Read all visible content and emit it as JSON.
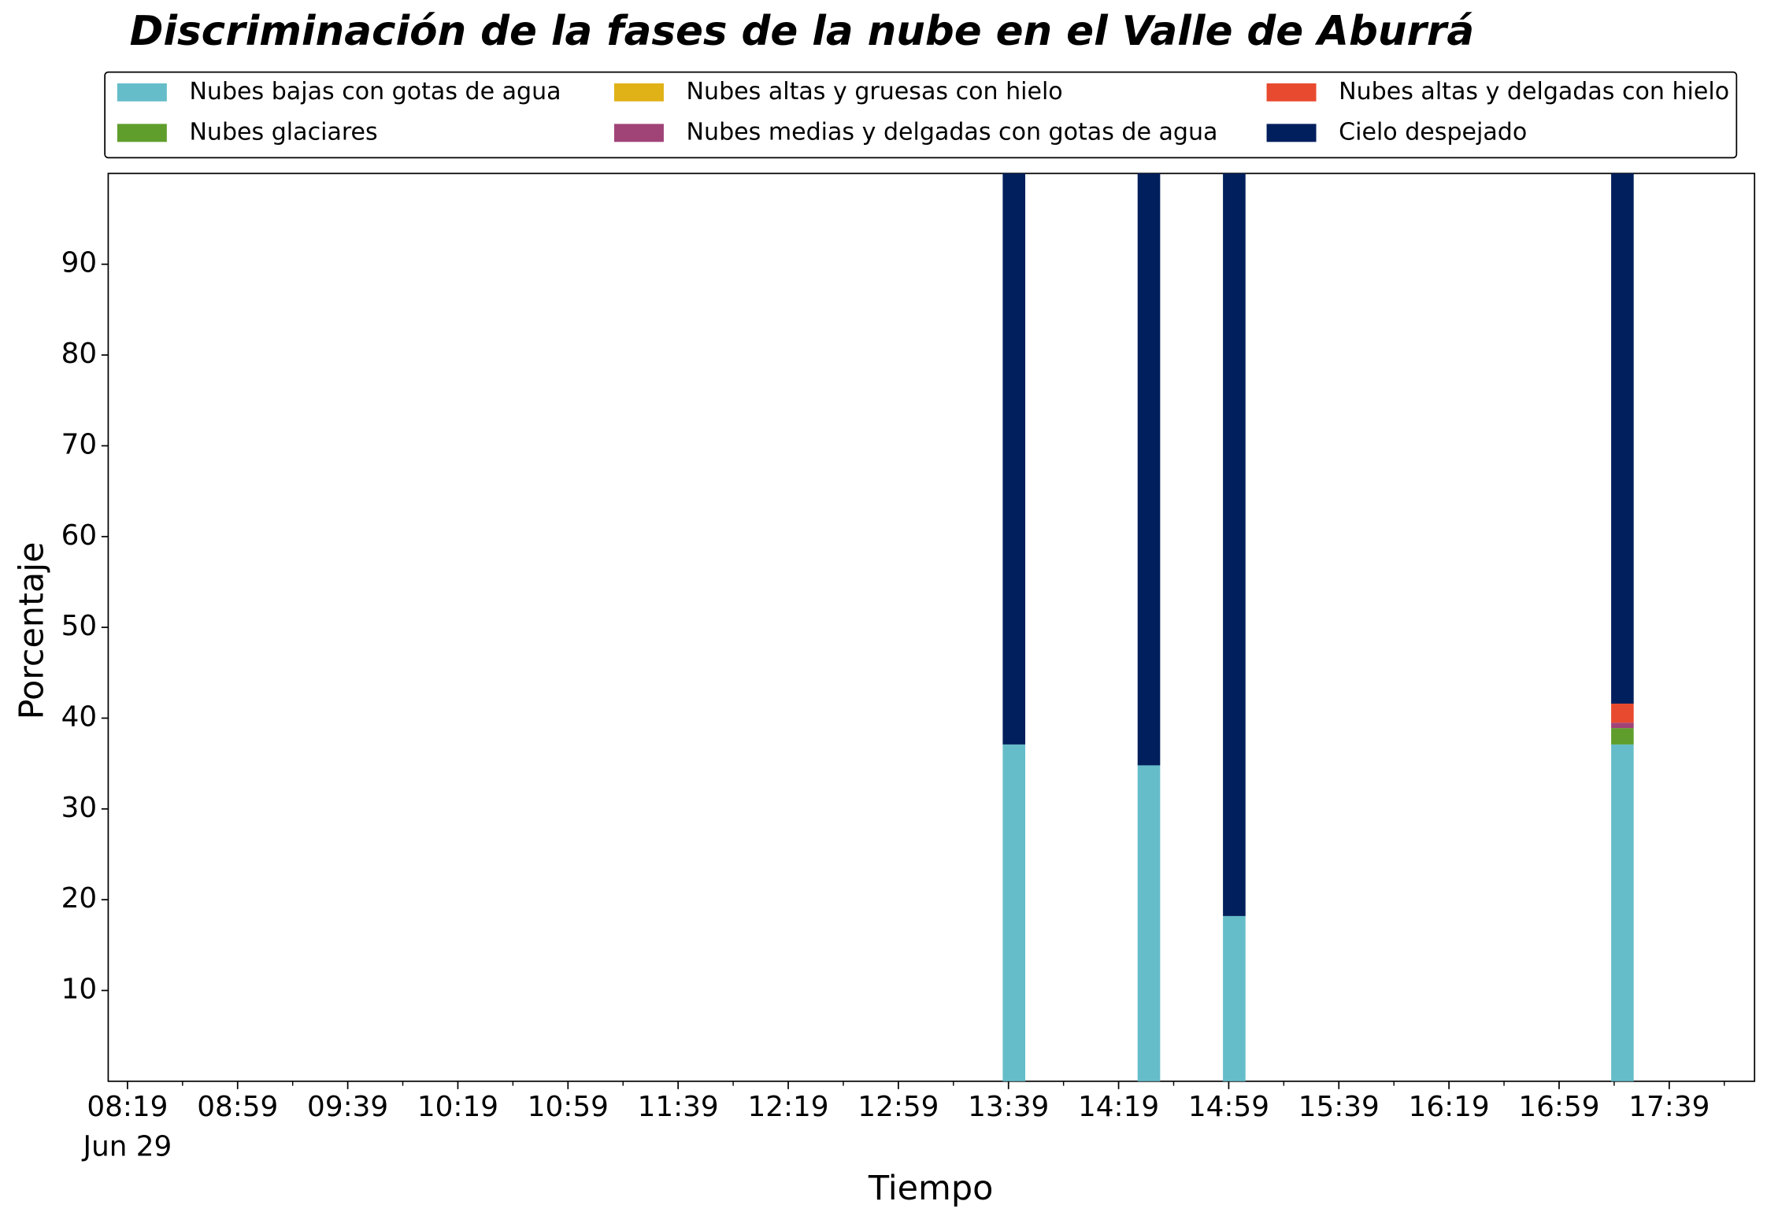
{
  "chart_data": {
    "type": "stacked_bar",
    "title": "Discriminación de la fases de la nube en el Valle de Aburrá",
    "x_label": "Tiempo",
    "y_label": "Porcentaje",
    "x_date_label": "Jun 29",
    "x": [
      "13:41",
      "14:30",
      "15:01",
      "17:22"
    ],
    "series": [
      {
        "name": "Nubes bajas con gotas de agua",
        "color": "#65bdc9",
        "values": [
          37.1,
          34.8,
          18.2,
          37.1
        ]
      },
      {
        "name": "Nubes glaciares",
        "color": "#5f9e2c",
        "values": [
          0,
          0,
          0,
          1.8
        ]
      },
      {
        "name": "Nubes altas y gruesas con hielo",
        "color": "#e0b217",
        "values": [
          0,
          0,
          0,
          0
        ]
      },
      {
        "name": "Nubes medias y delgadas con gotas de agua",
        "color": "#a04478",
        "values": [
          0,
          0,
          0,
          0.6
        ]
      },
      {
        "name": "Nubes altas y delgadas con hielo",
        "color": "#e84a2f",
        "values": [
          0,
          0,
          0,
          2.1
        ]
      },
      {
        "name": "Cielo despejado",
        "color": "#001f5c",
        "values": [
          62.9,
          65.2,
          81.8,
          58.4
        ]
      }
    ],
    "xlim": [
      "08:12",
      "18:10"
    ],
    "xticks": [
      "08:19",
      "08:59",
      "09:39",
      "10:19",
      "10:59",
      "11:39",
      "12:19",
      "12:59",
      "13:39",
      "14:19",
      "14:59",
      "15:39",
      "16:19",
      "16:59",
      "17:39"
    ],
    "xticks_minor": [
      "08:39",
      "09:19",
      "09:59",
      "10:39",
      "11:19",
      "11:59",
      "12:39",
      "13:19",
      "13:59",
      "14:39",
      "15:19",
      "15:59",
      "16:39",
      "17:19",
      "17:59"
    ],
    "ylim": [
      0,
      100
    ],
    "yticks": [
      10,
      20,
      30,
      40,
      50,
      60,
      70,
      80,
      90
    ],
    "legend": "top"
  }
}
